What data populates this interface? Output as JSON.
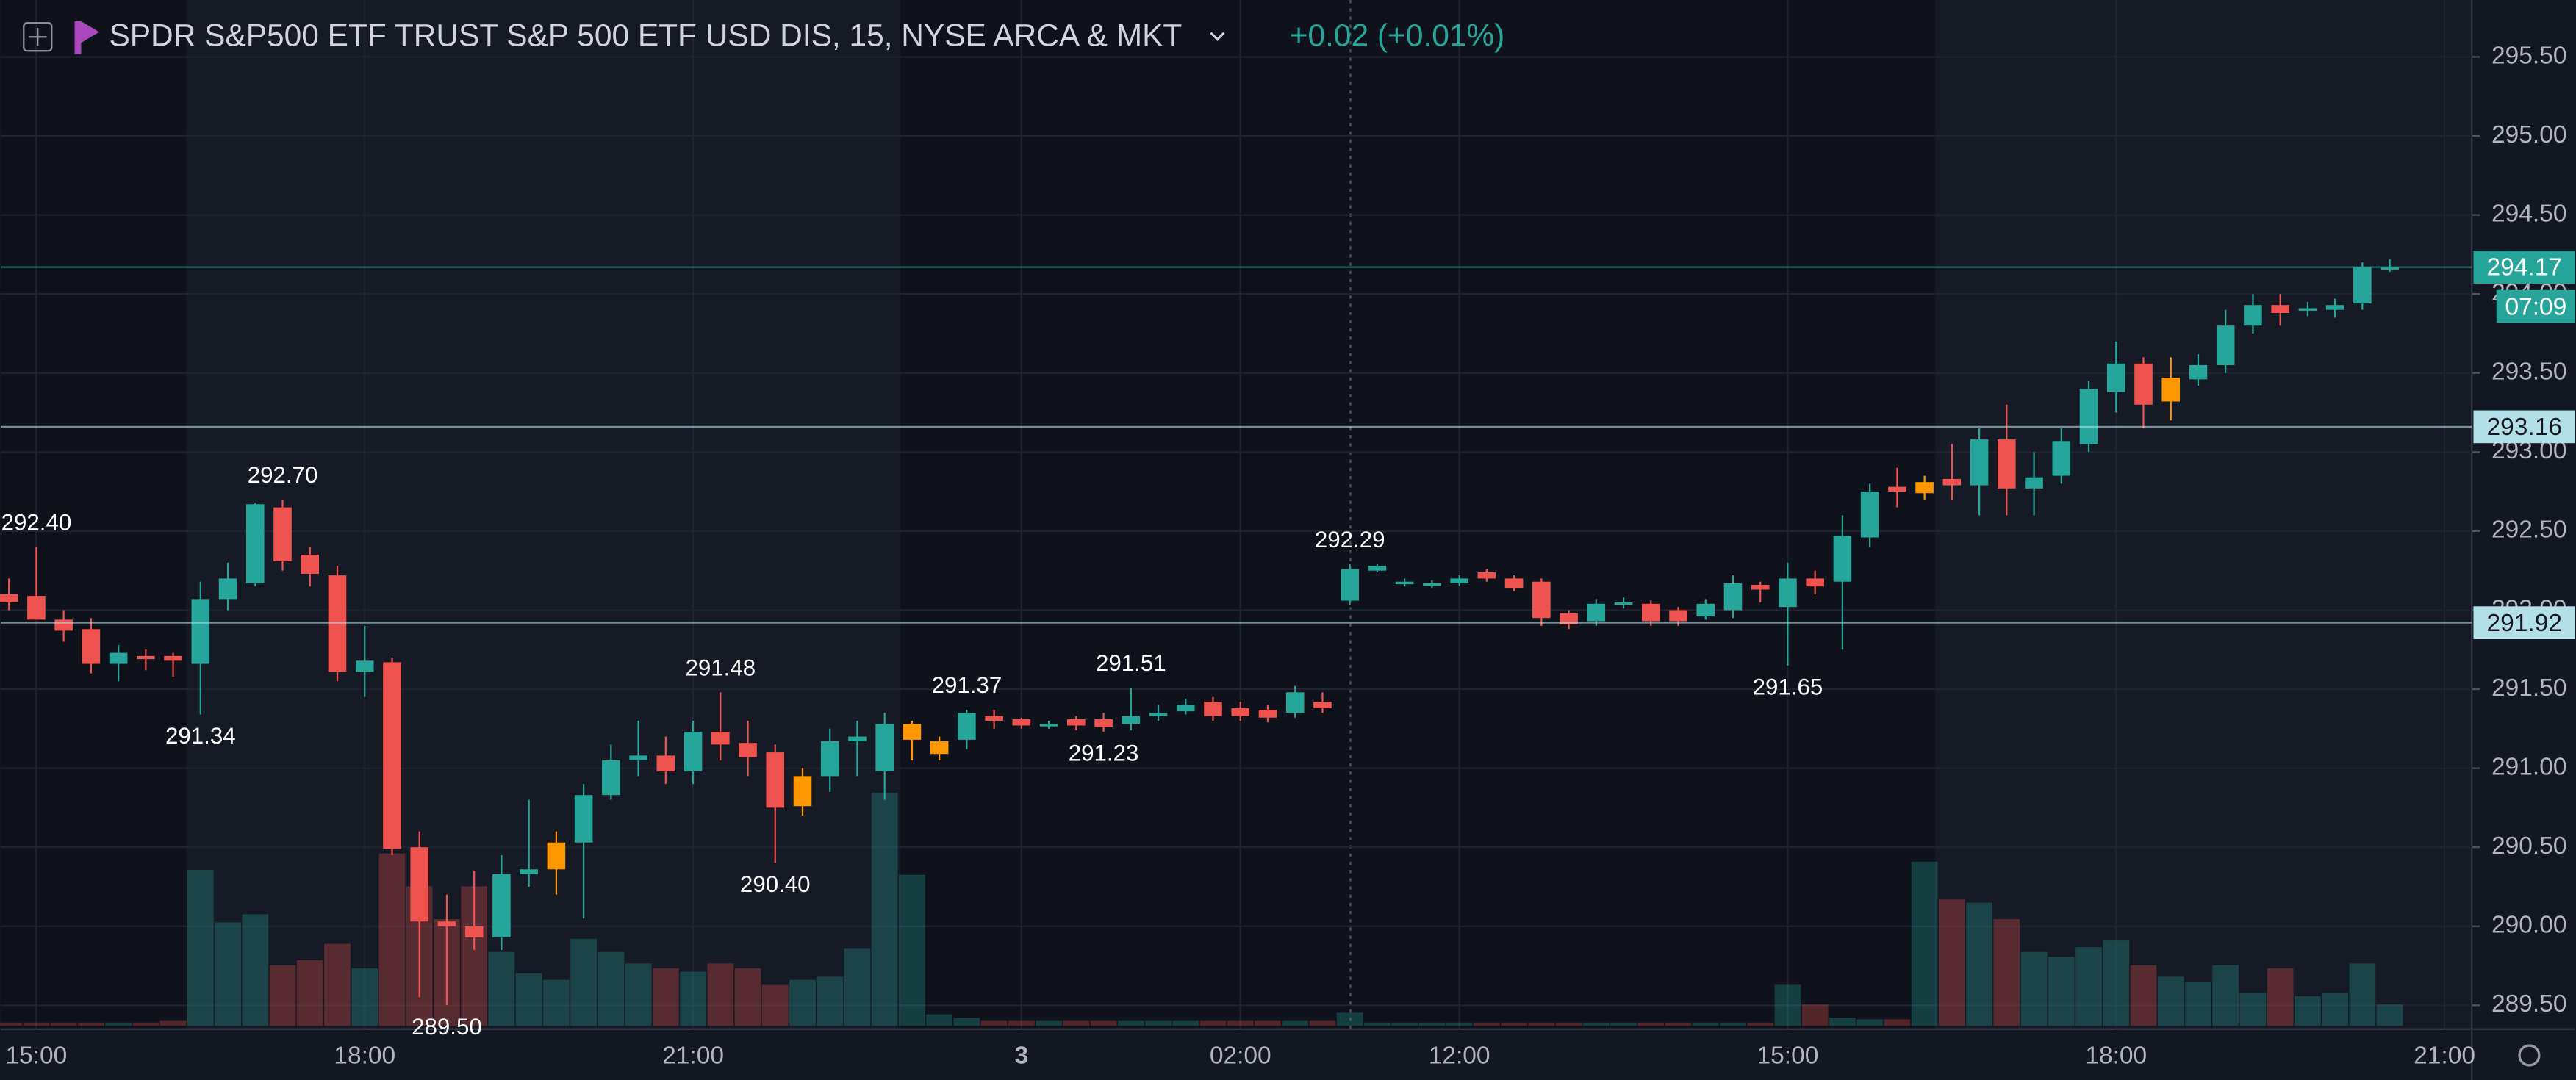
{
  "header": {
    "title": "SPDR S&P500 ETF TRUST S&P 500 ETF USD DIS, 15, NYSE ARCA & MKT",
    "change": "+0.02 (+0.01%)"
  },
  "chart_data": {
    "type": "candlestick",
    "categories": [
      null,
      "15:00",
      null,
      null,
      null,
      null,
      null,
      null,
      null,
      null,
      null,
      null,
      null,
      "18:00",
      null,
      null,
      null,
      null,
      null,
      null,
      null,
      null,
      null,
      null,
      null,
      "21:00",
      null,
      null,
      null,
      null,
      null,
      null,
      null,
      null,
      null,
      null,
      null,
      "3",
      null,
      null,
      null,
      null,
      null,
      null,
      null,
      "02:00",
      null,
      null,
      null,
      null,
      null,
      null,
      null,
      "12:00",
      null,
      null,
      null,
      null,
      null,
      null,
      null,
      null,
      null,
      null,
      null,
      "15:00",
      null,
      null,
      null,
      null,
      null,
      null,
      null,
      null,
      null,
      null,
      null,
      "18:00",
      null,
      null,
      null,
      null,
      null,
      null,
      null,
      null,
      null,
      null,
      null,
      "21:00"
    ],
    "open": [
      292.1,
      292.09,
      291.94,
      291.88,
      291.66,
      291.71,
      291.71,
      291.66,
      292.07,
      292.17,
      292.65,
      292.35,
      292.22,
      291.61,
      291.67,
      290.5,
      290.03,
      290.0,
      289.93,
      290.33,
      290.36,
      290.53,
      290.83,
      291.05,
      291.08,
      290.98,
      291.23,
      291.16,
      291.1,
      290.76,
      290.95,
      291.17,
      290.98,
      291.28,
      291.17,
      291.18,
      291.33,
      291.31,
      291.27,
      291.31,
      291.31,
      291.28,
      291.33,
      291.36,
      291.42,
      291.38,
      291.37,
      291.35,
      291.42,
      292.06,
      292.25,
      292.17,
      292.16,
      292.17,
      292.24,
      292.2,
      292.18,
      291.98,
      291.93,
      292.04,
      292.04,
      292.0,
      291.96,
      292.0,
      292.16,
      292.02,
      292.2,
      292.18,
      292.46,
      292.78,
      292.74,
      292.83,
      292.79,
      293.08,
      292.77,
      292.85,
      293.05,
      293.38,
      293.56,
      293.32,
      293.46,
      293.55,
      293.8,
      293.93,
      293.9,
      293.9,
      293.94,
      294.16,
      null,
      null
    ],
    "high": [
      292.2,
      292.4,
      292.0,
      291.95,
      291.78,
      291.75,
      291.73,
      292.18,
      292.3,
      292.68,
      292.7,
      292.4,
      292.28,
      291.9,
      291.7,
      290.6,
      290.2,
      290.35,
      290.45,
      290.8,
      290.6,
      290.9,
      291.15,
      291.3,
      291.2,
      291.3,
      291.48,
      291.3,
      291.15,
      291.0,
      291.25,
      291.3,
      291.35,
      291.3,
      291.2,
      291.37,
      291.37,
      291.32,
      291.3,
      291.33,
      291.35,
      291.51,
      291.4,
      291.44,
      291.45,
      291.42,
      291.4,
      291.52,
      291.48,
      292.29,
      292.29,
      292.2,
      292.19,
      292.22,
      292.26,
      292.22,
      292.2,
      292.0,
      292.07,
      292.08,
      292.06,
      292.02,
      292.07,
      292.22,
      292.18,
      292.3,
      292.25,
      292.6,
      292.8,
      292.9,
      292.85,
      293.05,
      293.15,
      293.3,
      293.0,
      293.15,
      293.45,
      293.7,
      293.6,
      293.6,
      293.62,
      293.9,
      294.0,
      294.0,
      293.95,
      293.97,
      294.2,
      294.22,
      null,
      null
    ],
    "low": [
      292.0,
      291.95,
      291.8,
      291.6,
      291.55,
      291.62,
      291.58,
      291.34,
      292.0,
      292.15,
      292.25,
      292.15,
      291.55,
      291.45,
      290.45,
      289.55,
      289.5,
      289.85,
      289.85,
      290.25,
      290.2,
      290.05,
      290.8,
      290.95,
      290.9,
      290.9,
      291.05,
      290.95,
      290.4,
      290.7,
      290.85,
      290.95,
      290.8,
      291.05,
      291.05,
      291.12,
      291.25,
      291.25,
      291.25,
      291.24,
      291.23,
      291.24,
      291.3,
      291.34,
      291.3,
      291.3,
      291.29,
      291.32,
      291.35,
      292.03,
      292.24,
      292.15,
      292.14,
      292.15,
      292.18,
      292.12,
      291.9,
      291.88,
      291.9,
      292.01,
      291.9,
      291.9,
      291.94,
      291.95,
      292.05,
      291.65,
      292.1,
      291.75,
      292.4,
      292.65,
      292.7,
      292.7,
      292.6,
      292.6,
      292.6,
      292.8,
      293.0,
      293.25,
      293.15,
      293.2,
      293.42,
      293.5,
      293.75,
      293.8,
      293.86,
      293.85,
      293.9,
      294.14,
      null,
      null
    ],
    "close": [
      292.05,
      291.94,
      291.87,
      291.66,
      291.73,
      291.69,
      291.68,
      292.07,
      292.2,
      292.67,
      292.31,
      292.23,
      291.61,
      291.68,
      290.49,
      290.03,
      290.0,
      289.93,
      290.33,
      290.36,
      290.53,
      290.83,
      291.05,
      291.08,
      290.98,
      291.23,
      291.15,
      291.07,
      290.75,
      290.95,
      291.17,
      291.2,
      291.28,
      291.18,
      291.09,
      291.35,
      291.3,
      291.27,
      291.28,
      291.27,
      291.26,
      291.33,
      291.35,
      291.4,
      291.33,
      291.33,
      291.32,
      291.48,
      291.38,
      292.26,
      292.28,
      292.18,
      292.17,
      292.2,
      292.2,
      292.14,
      291.95,
      291.91,
      292.04,
      292.05,
      291.93,
      291.93,
      292.04,
      292.17,
      292.13,
      292.2,
      292.15,
      292.47,
      292.75,
      292.75,
      292.81,
      292.79,
      293.08,
      292.77,
      292.84,
      293.07,
      293.4,
      293.56,
      293.3,
      293.47,
      293.55,
      293.8,
      293.93,
      293.88,
      293.91,
      293.93,
      294.17,
      294.17,
      null,
      null
    ],
    "colors": [
      "#ef5350",
      "#ef5350",
      "#ef5350",
      "#ef5350",
      "#26a69a",
      "#ef5350",
      "#ef5350",
      "#26a69a",
      "#26a69a",
      "#26a69a",
      "#ef5350",
      "#ef5350",
      "#ef5350",
      "#26a69a",
      "#ef5350",
      "#ef5350",
      "#ef5350",
      "#ef5350",
      "#26a69a",
      "#26a69a",
      "#ff9800",
      "#26a69a",
      "#26a69a",
      "#26a69a",
      "#ef5350",
      "#26a69a",
      "#ef5350",
      "#ef5350",
      "#ef5350",
      "#ff9800",
      "#26a69a",
      "#26a69a",
      "#26a69a",
      "#ff9800",
      "#ff9800",
      "#26a69a",
      "#ef5350",
      "#ef5350",
      "#26a69a",
      "#ef5350",
      "#ef5350",
      "#26a69a",
      "#26a69a",
      "#26a69a",
      "#ef5350",
      "#ef5350",
      "#ef5350",
      "#26a69a",
      "#ef5350",
      "#26a69a",
      "#26a69a",
      "#26a69a",
      "#26a69a",
      "#26a69a",
      "#ef5350",
      "#ef5350",
      "#ef5350",
      "#ef5350",
      "#26a69a",
      "#26a69a",
      "#ef5350",
      "#ef5350",
      "#26a69a",
      "#26a69a",
      "#ef5350",
      "#26a69a",
      "#ef5350",
      "#26a69a",
      "#26a69a",
      "#ef5350",
      "#ff9800",
      "#ef5350",
      "#26a69a",
      "#ef5350",
      "#26a69a",
      "#26a69a",
      "#26a69a",
      "#26a69a",
      "#ef5350",
      "#ff9800",
      "#26a69a",
      "#26a69a",
      "#26a69a",
      "#ef5350",
      "#26a69a",
      "#26a69a",
      "#26a69a",
      "#26a69a",
      null,
      null
    ],
    "volume": [
      2,
      2,
      2,
      2,
      2,
      2,
      3,
      95,
      63,
      68,
      37,
      40,
      50,
      35,
      105,
      85,
      65,
      85,
      45,
      32,
      28,
      53,
      45,
      38,
      35,
      33,
      38,
      35,
      25,
      28,
      30,
      47,
      142,
      92,
      7,
      5,
      3,
      3,
      3,
      3,
      3,
      3,
      3,
      3,
      3,
      3,
      3,
      3,
      3,
      8,
      2,
      2,
      2,
      2,
      2,
      2,
      2,
      2,
      2,
      2,
      2,
      2,
      2,
      2,
      2,
      25,
      13,
      5,
      4,
      4,
      100,
      77,
      75,
      65,
      45,
      42,
      48,
      52,
      37,
      30,
      27,
      37,
      20,
      35,
      18,
      20,
      38,
      13,
      null,
      null
    ],
    "vlim": [
      0,
      150
    ],
    "ylim": [
      289.37,
      295.86
    ],
    "yticks": [
      {
        "value": 289.5,
        "label": "289.50"
      },
      {
        "value": 290,
        "label": "290.00"
      },
      {
        "value": 290.5,
        "label": "290.50"
      },
      {
        "value": 291,
        "label": "291.00"
      },
      {
        "value": 291.5,
        "label": "291.50"
      },
      {
        "value": 292,
        "label": "292.00"
      },
      {
        "value": 292.5,
        "label": "292.50"
      },
      {
        "value": 293,
        "label": "293.00"
      },
      {
        "value": 293.5,
        "label": "293.50"
      },
      {
        "value": 294,
        "label": "294.00"
      },
      {
        "value": 294.5,
        "label": "294.50"
      },
      {
        "value": 295,
        "label": "295.00"
      },
      {
        "value": 295.5,
        "label": "295.50"
      }
    ],
    "grid": true,
    "annotations": [
      {
        "value": 292.4,
        "label": "292.40",
        "index": 1,
        "side": "high"
      },
      {
        "value": 292.7,
        "label": "292.70",
        "index": 10,
        "side": "high"
      },
      {
        "value": 291.34,
        "label": "291.34",
        "index": 7,
        "side": "low"
      },
      {
        "value": 291.48,
        "label": "291.48",
        "index": 26,
        "side": "high"
      },
      {
        "value": 290.4,
        "label": "290.40",
        "index": 28,
        "side": "low"
      },
      {
        "value": 291.37,
        "label": "291.37",
        "index": 35,
        "side": "high"
      },
      {
        "value": 291.51,
        "label": "291.51",
        "index": 41,
        "side": "high"
      },
      {
        "value": 291.23,
        "label": "291.23",
        "index": 40,
        "side": "low"
      },
      {
        "value": 292.29,
        "label": "292.29",
        "index": 49,
        "side": "high"
      },
      {
        "value": 291.65,
        "label": "291.65",
        "index": 65,
        "side": "low"
      },
      {
        "value": 289.5,
        "label": "289.50",
        "index": 16,
        "side": "low"
      }
    ],
    "price_lines": [
      {
        "value": 294.17,
        "label": "294.17",
        "color": "#26a69a"
      },
      {
        "value": 293.16,
        "label": "293.16",
        "color": "#b2dfe8"
      },
      {
        "value": 291.92,
        "label": "291.92",
        "color": "#b2dfe8"
      }
    ],
    "countdown": "07:09"
  }
}
